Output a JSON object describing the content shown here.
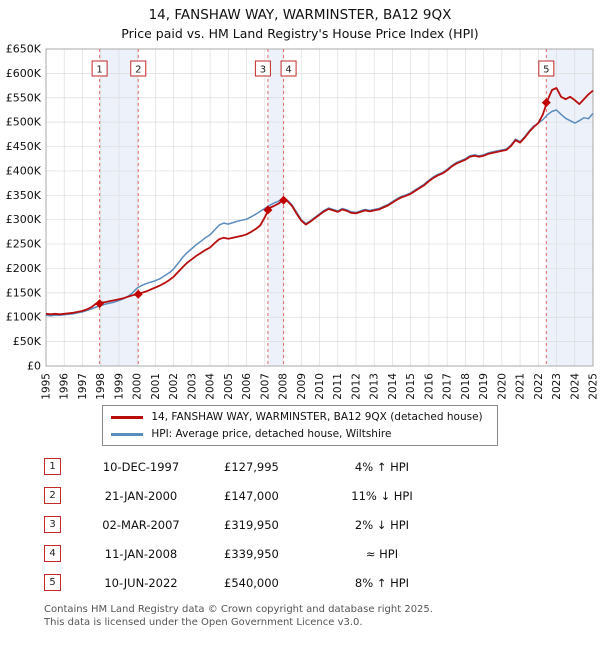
{
  "chart_data": {
    "type": "line",
    "title": "14, FANSHAW WAY, WARMINSTER, BA12 9QX",
    "subtitle": "Price paid vs. HM Land Registry's House Price Index (HPI)",
    "xlim_years": [
      1995,
      2025
    ],
    "ylim_gbp": [
      0,
      650000
    ],
    "y_tick_step_gbp": 50000,
    "grid": true,
    "legend_position": "below",
    "series": [
      {
        "name": "14, FANSHAW WAY, WARMINSTER, BA12 9QX (detached house)",
        "color": "#b80d0d",
        "x_start_year": 1995,
        "x_step_years": 0.25,
        "values_gbp_thousands": [
          107,
          106,
          107,
          106,
          107,
          108,
          109,
          111,
          113,
          116,
          121,
          128,
          130,
          131,
          133,
          135,
          137,
          139,
          142,
          145,
          147,
          150,
          153,
          157,
          161,
          165,
          170,
          176,
          183,
          193,
          203,
          212,
          219,
          226,
          232,
          238,
          243,
          252,
          260,
          263,
          261,
          263,
          265,
          267,
          270,
          275,
          281,
          288,
          305,
          324,
          328,
          333,
          340,
          338,
          328,
          312,
          298,
          290,
          296,
          303,
          310,
          317,
          322,
          319,
          316,
          321,
          318,
          314,
          313,
          316,
          319,
          317,
          319,
          321,
          325,
          329,
          335,
          341,
          346,
          349,
          353,
          359,
          365,
          371,
          379,
          386,
          391,
          395,
          401,
          409,
          415,
          419,
          423,
          429,
          431,
          429,
          431,
          435,
          437,
          439,
          441,
          443,
          451,
          463,
          458,
          468,
          480,
          490,
          498,
          516,
          544,
          566,
          570,
          552,
          547,
          552,
          545,
          537,
          547,
          557,
          565
        ]
      },
      {
        "name": "HPI: Average price, detached house, Wiltshire",
        "color": "#5b8cbe",
        "x_start_year": 1995,
        "x_step_years": 0.25,
        "values_gbp_thousands": [
          104,
          103,
          104,
          104,
          105,
          106,
          107,
          109,
          111,
          114,
          117,
          121,
          124,
          127,
          129,
          131,
          134,
          138,
          143,
          150,
          160,
          165,
          169,
          172,
          175,
          179,
          185,
          191,
          199,
          211,
          223,
          233,
          241,
          249,
          256,
          263,
          269,
          279,
          289,
          293,
          291,
          294,
          297,
          299,
          301,
          306,
          311,
          317,
          323,
          329,
          334,
          338,
          343,
          340,
          330,
          315,
          300,
          292,
          298,
          305,
          312,
          319,
          324,
          321,
          318,
          323,
          320,
          316,
          315,
          318,
          321,
          319,
          321,
          323,
          327,
          331,
          337,
          343,
          348,
          351,
          355,
          361,
          367,
          373,
          381,
          388,
          393,
          397,
          403,
          411,
          417,
          421,
          425,
          431,
          433,
          431,
          433,
          437,
          439,
          441,
          443,
          445,
          453,
          465,
          460,
          470,
          482,
          492,
          498,
          505,
          515,
          522,
          525,
          516,
          508,
          503,
          498,
          503,
          509,
          507,
          518
        ]
      }
    ],
    "sales_markers": [
      {
        "label": "1",
        "year": 1997.94,
        "price_gbp": 127995
      },
      {
        "label": "2",
        "year": 2000.06,
        "price_gbp": 147000
      },
      {
        "label": "3",
        "year": 2007.17,
        "price_gbp": 319950
      },
      {
        "label": "4",
        "year": 2008.03,
        "price_gbp": 339950
      },
      {
        "label": "5",
        "year": 2022.44,
        "price_gbp": 540000
      }
    ],
    "shaded_bands_years": [
      [
        1997.94,
        2000.06
      ],
      [
        2007.17,
        2008.03
      ],
      [
        2022.44,
        2025
      ]
    ],
    "colors": {
      "band": "#dce6f5",
      "grid": "#dddddd",
      "plot_border": "#aaaaaa",
      "dashed_sale_line": "#e06c6c",
      "marker": "#c00000",
      "sale_box_border": "#c22a2a"
    }
  },
  "legend": {
    "items": [
      {
        "label": "14, FANSHAW WAY, WARMINSTER, BA12 9QX (detached house)",
        "color": "#b80d0d"
      },
      {
        "label": "HPI: Average price, detached house, Wiltshire",
        "color": "#5b8cbe"
      }
    ]
  },
  "transactions": [
    {
      "n": "1",
      "date": "10-DEC-1997",
      "price": "£127,995",
      "delta": "4% ↑ HPI"
    },
    {
      "n": "2",
      "date": "21-JAN-2000",
      "price": "£147,000",
      "delta": "11% ↓ HPI"
    },
    {
      "n": "3",
      "date": "02-MAR-2007",
      "price": "£319,950",
      "delta": "2% ↓ HPI"
    },
    {
      "n": "4",
      "date": "11-JAN-2008",
      "price": "£339,950",
      "delta": "≈ HPI"
    },
    {
      "n": "5",
      "date": "10-JUN-2022",
      "price": "£540,000",
      "delta": "8% ↑ HPI"
    }
  ],
  "footer": {
    "line1": "Contains HM Land Registry data © Crown copyright and database right 2025.",
    "line2": "This data is licensed under the Open Government Licence v3.0."
  }
}
